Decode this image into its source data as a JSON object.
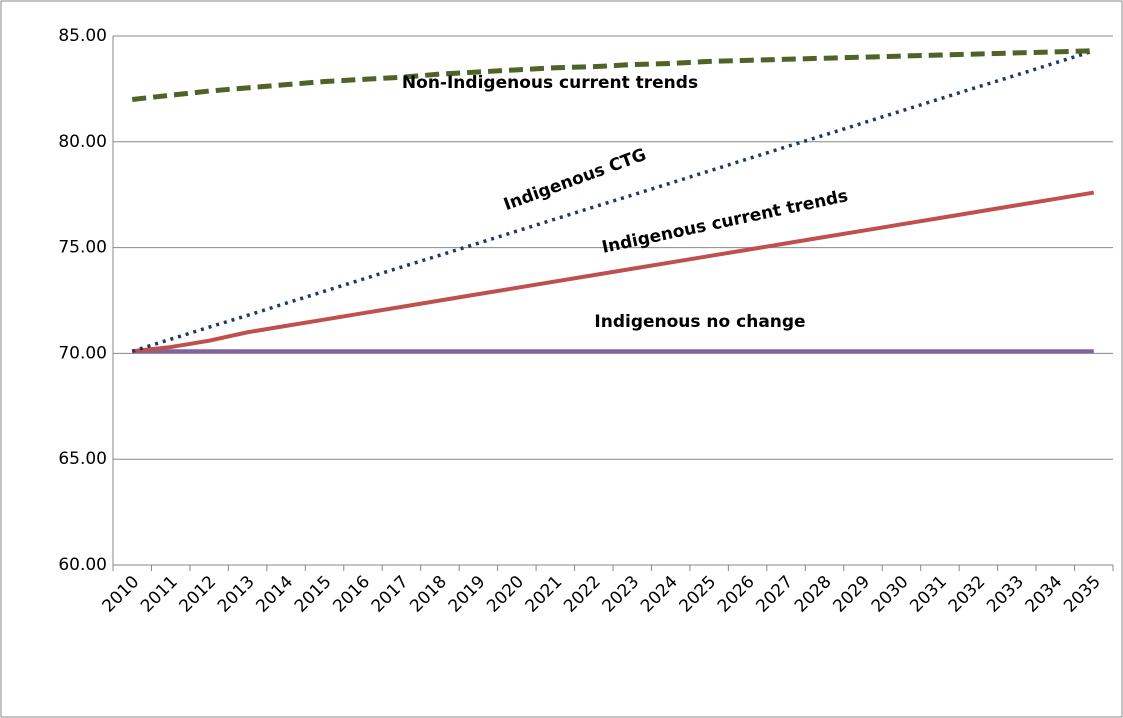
{
  "chart_data": {
    "type": "line",
    "categories": [
      "2010",
      "2011",
      "2012",
      "2013",
      "2014",
      "2015",
      "2016",
      "2017",
      "2018",
      "2019",
      "2020",
      "2021",
      "2022",
      "2023",
      "2024",
      "2025",
      "2026",
      "2027",
      "2028",
      "2029",
      "2030",
      "2031",
      "2032",
      "2033",
      "2034",
      "2035"
    ],
    "series": [
      {
        "name": "Non-Indigenous current trends",
        "color": "#4f6228",
        "style": "dashed",
        "values": [
          82.0,
          82.2,
          82.4,
          82.55,
          82.7,
          82.85,
          82.95,
          83.05,
          83.2,
          83.3,
          83.4,
          83.5,
          83.55,
          83.65,
          83.7,
          83.8,
          83.85,
          83.9,
          83.95,
          84.0,
          84.05,
          84.1,
          84.15,
          84.2,
          84.25,
          84.3
        ]
      },
      {
        "name": "Indigenous CTG",
        "color": "#1f3864",
        "style": "dotted",
        "values": [
          70.1,
          70.67,
          71.24,
          71.8,
          72.37,
          72.94,
          73.51,
          74.08,
          74.64,
          75.21,
          75.78,
          76.35,
          76.92,
          77.48,
          78.05,
          78.62,
          79.19,
          79.76,
          80.32,
          80.89,
          81.46,
          82.03,
          82.6,
          83.16,
          83.73,
          84.3
        ]
      },
      {
        "name": "Indigenous current trends",
        "color": "#c0504d",
        "style": "solid",
        "values": [
          70.1,
          70.3,
          70.6,
          71.0,
          71.3,
          71.6,
          71.9,
          72.2,
          72.5,
          72.8,
          73.1,
          73.4,
          73.7,
          74.0,
          74.3,
          74.6,
          74.9,
          75.2,
          75.5,
          75.8,
          76.1,
          76.4,
          76.7,
          77.0,
          77.3,
          77.6
        ]
      },
      {
        "name": "Indigenous no change",
        "color": "#8064a2",
        "style": "solid",
        "values": [
          70.1,
          70.1,
          70.1,
          70.1,
          70.1,
          70.1,
          70.1,
          70.1,
          70.1,
          70.1,
          70.1,
          70.1,
          70.1,
          70.1,
          70.1,
          70.1,
          70.1,
          70.1,
          70.1,
          70.1,
          70.1,
          70.1,
          70.1,
          70.1,
          70.1,
          70.1
        ]
      }
    ],
    "ylim": [
      60,
      85
    ],
    "yticks": [
      {
        "value": 60,
        "label": "60.00"
      },
      {
        "value": 65,
        "label": "65.00"
      },
      {
        "value": 70,
        "label": "70.00"
      },
      {
        "value": 75,
        "label": "75.00"
      },
      {
        "value": 80,
        "label": "80.00"
      },
      {
        "value": 85,
        "label": "85.00"
      }
    ],
    "grid": true
  }
}
